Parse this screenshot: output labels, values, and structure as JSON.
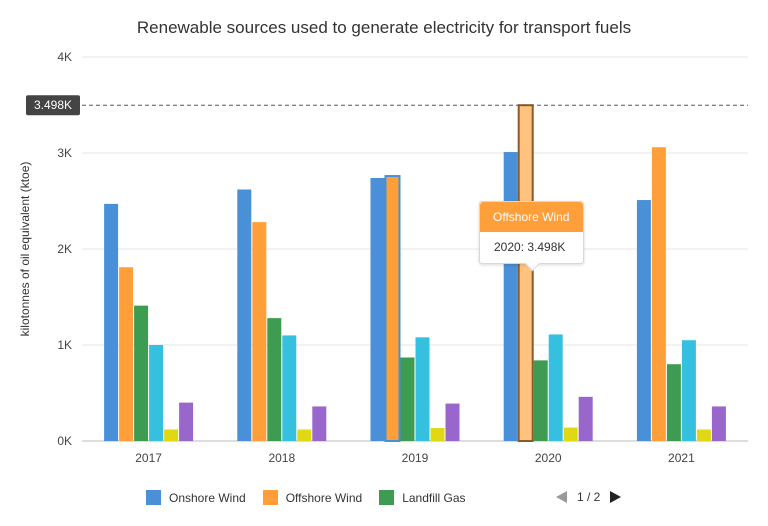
{
  "chart_data": {
    "type": "bar",
    "title": "Renewable sources used to generate electricity for transport fuels",
    "xlabel": "",
    "ylabel": "kilotonnes of oil equivalent (ktoe)",
    "categories": [
      "2017",
      "2018",
      "2019",
      "2020",
      "2021"
    ],
    "ylim": [
      0,
      4000
    ],
    "yticks": [
      0,
      1000,
      2000,
      3000,
      4000
    ],
    "ytick_labels": [
      "0K",
      "1K",
      "2K",
      "3K",
      "4K"
    ],
    "grid": true,
    "series": [
      {
        "name": "Onshore Wind",
        "color": "#4a90d9",
        "values": [
          2470,
          2620,
          2740,
          3010,
          2510
        ]
      },
      {
        "name": "Offshore Wind",
        "color": "#ff9f3a",
        "values": [
          1810,
          2280,
          2760,
          3498,
          3060
        ]
      },
      {
        "name": "Landfill Gas",
        "color": "#3e9c52",
        "values": [
          1410,
          1280,
          870,
          840,
          800
        ]
      },
      {
        "name": "",
        "color": "#35c0e0",
        "values": [
          1000,
          1100,
          1080,
          1110,
          1050
        ]
      },
      {
        "name": "",
        "color": "#e0d814",
        "values": [
          120,
          120,
          135,
          140,
          120
        ]
      },
      {
        "name": "",
        "color": "#9966cc",
        "values": [
          400,
          360,
          390,
          460,
          360
        ]
      }
    ],
    "highlight": {
      "series": 1,
      "category": 2
    },
    "selected": {
      "series": 1,
      "category": 3
    },
    "reference_line": {
      "value": 3498,
      "label": "3.498K"
    }
  },
  "tooltip": {
    "header": "Offshore Wind",
    "body": "2020: 3.498K"
  },
  "legend": {
    "items": [
      {
        "label": "Onshore Wind",
        "color": "#4a90d9"
      },
      {
        "label": "Offshore Wind",
        "color": "#ff9f3a"
      },
      {
        "label": "Landfill Gas",
        "color": "#3e9c52"
      }
    ],
    "page_label": "1 / 2"
  }
}
